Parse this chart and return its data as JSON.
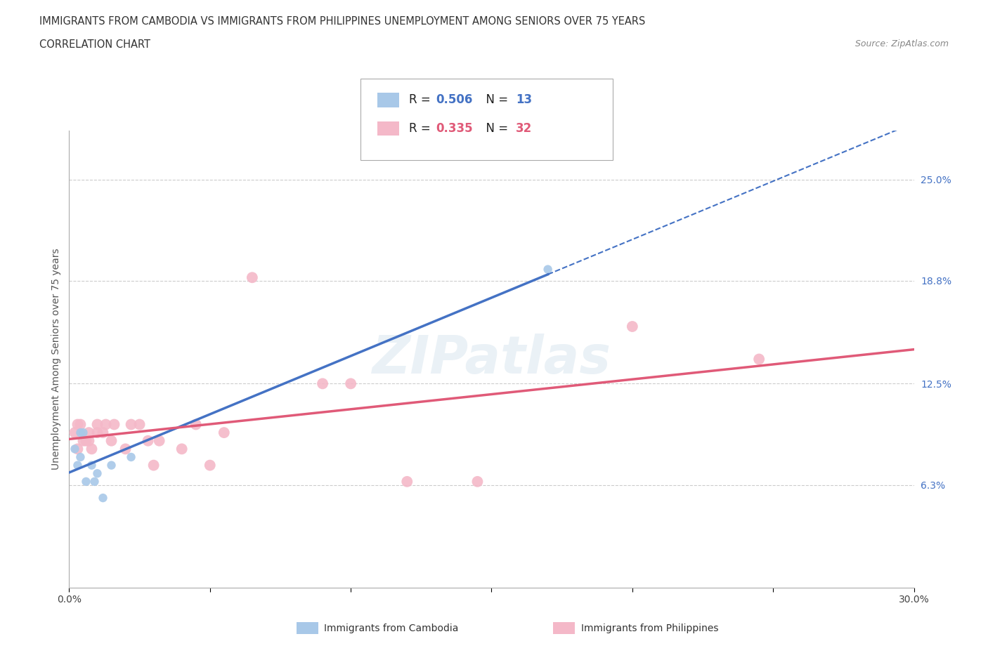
{
  "title_line1": "IMMIGRANTS FROM CAMBODIA VS IMMIGRANTS FROM PHILIPPINES UNEMPLOYMENT AMONG SENIORS OVER 75 YEARS",
  "title_line2": "CORRELATION CHART",
  "source": "Source: ZipAtlas.com",
  "ylabel": "Unemployment Among Seniors over 75 years",
  "xlim": [
    0.0,
    0.3
  ],
  "ylim": [
    0.0,
    0.28
  ],
  "ytick_labels": [
    "6.3%",
    "12.5%",
    "18.8%",
    "25.0%"
  ],
  "ytick_values": [
    0.063,
    0.125,
    0.188,
    0.25
  ],
  "xtick_positions": [
    0.0,
    0.05,
    0.1,
    0.15,
    0.2,
    0.25,
    0.3
  ],
  "xtick_labels": [
    "0.0%",
    "",
    "",
    "",
    "",
    "",
    "30.0%"
  ],
  "grid_color": "#cccccc",
  "background_color": "#ffffff",
  "cambodia_color": "#a8c8e8",
  "philippines_color": "#f4b8c8",
  "cambodia_line_color": "#4472c4",
  "philippines_line_color": "#e05a78",
  "watermark_text": "ZIPatlas",
  "cambodia_x": [
    0.002,
    0.003,
    0.004,
    0.004,
    0.005,
    0.006,
    0.008,
    0.009,
    0.01,
    0.012,
    0.015,
    0.022,
    0.17
  ],
  "cambodia_y": [
    0.085,
    0.075,
    0.08,
    0.095,
    0.095,
    0.065,
    0.075,
    0.065,
    0.07,
    0.055,
    0.075,
    0.08,
    0.195
  ],
  "philippines_x": [
    0.002,
    0.003,
    0.003,
    0.004,
    0.005,
    0.006,
    0.007,
    0.007,
    0.008,
    0.01,
    0.01,
    0.012,
    0.013,
    0.015,
    0.016,
    0.02,
    0.022,
    0.025,
    0.028,
    0.03,
    0.032,
    0.04,
    0.045,
    0.05,
    0.055,
    0.065,
    0.09,
    0.1,
    0.12,
    0.145,
    0.2,
    0.245
  ],
  "philippines_y": [
    0.095,
    0.085,
    0.1,
    0.1,
    0.09,
    0.09,
    0.09,
    0.095,
    0.085,
    0.095,
    0.1,
    0.095,
    0.1,
    0.09,
    0.1,
    0.085,
    0.1,
    0.1,
    0.09,
    0.075,
    0.09,
    0.085,
    0.1,
    0.075,
    0.095,
    0.19,
    0.125,
    0.125,
    0.065,
    0.065,
    0.16,
    0.14
  ],
  "dot_size_cambodia": 80,
  "dot_size_philippines": 130,
  "title_fontsize": 10.5,
  "axis_label_fontsize": 10,
  "tick_fontsize": 10,
  "legend_fontsize": 12
}
